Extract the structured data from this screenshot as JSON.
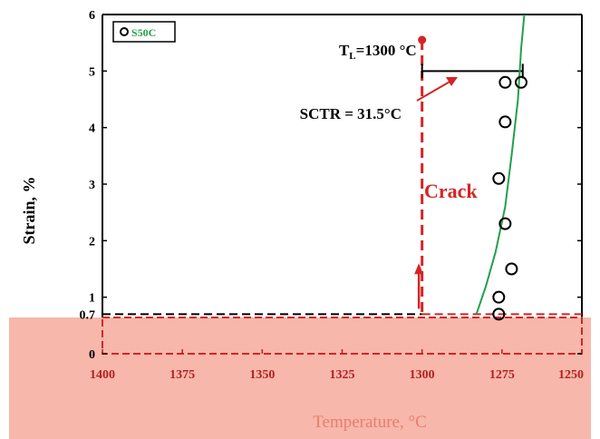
{
  "chart_data": {
    "type": "scatter",
    "title": "",
    "xlabel": "Temperature, °C",
    "ylabel": "Strain, %",
    "xlim": [
      1400,
      1250
    ],
    "ylim": [
      0,
      6
    ],
    "x_ticks": [
      1400,
      1375,
      1350,
      1325,
      1300,
      1275,
      1250
    ],
    "x_tick_labels": [
      "1400",
      "1375",
      "1350",
      "1325",
      "1300",
      "1275",
      "1250"
    ],
    "y_ticks": [
      0,
      0.7,
      1,
      2,
      3,
      4,
      5,
      6
    ],
    "y_tick_labels": [
      "0",
      "0.7",
      "1",
      "2",
      "3",
      "4",
      "5",
      "6"
    ],
    "legend": {
      "position": "top-left",
      "entries": [
        "S50C"
      ]
    },
    "series": [
      {
        "name": "S50C",
        "x": [
          1276,
          1276,
          1272,
          1274,
          1276,
          1274,
          1274,
          1269
        ],
        "y": [
          0.7,
          1.0,
          1.5,
          2.3,
          3.1,
          4.1,
          4.8,
          4.8
        ]
      }
    ],
    "fit_curve": {
      "x": [
        1283,
        1280,
        1277,
        1274,
        1272,
        1270,
        1269,
        1268
      ],
      "y": [
        0.7,
        1.2,
        1.8,
        2.6,
        3.5,
        4.5,
        5.4,
        6.0
      ]
    },
    "annotations": {
      "tl_label": "T",
      "tl_sub": "L",
      "tl_rest": "=1300 °C",
      "tl_x": 1300,
      "tl_y": 5.55,
      "sctr_label": "SCTR = 31.5°C",
      "bracket_y": 5.0,
      "bracket_x_start": 1300,
      "bracket_x_end": 1268.5,
      "crack_label": "Crack",
      "crack_arrow_x": 1301,
      "dashed_y": 0.7
    },
    "colors": {
      "fit": "#22a04b",
      "tl": "#d42525",
      "band": "#f7b7ab",
      "axis_x": "#b22222"
    }
  }
}
